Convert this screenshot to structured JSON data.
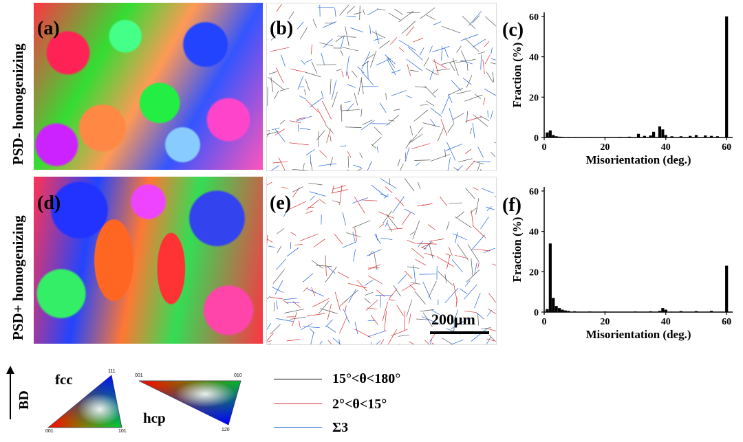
{
  "row_labels": [
    "PSD- homogenizing",
    "PSD+ homogenizing"
  ],
  "panel_labels": [
    "(a)",
    "(b)",
    "(c)",
    "(d)",
    "(e)",
    "(f)"
  ],
  "scale_bar": "200μm",
  "colors": {
    "hagb": "#000000",
    "lagb": "#d62b2b",
    "sigma3": "#1f5fdc"
  },
  "legend": {
    "bd_label": "BD",
    "fcc_label": "fcc",
    "hcp_label": "hcp",
    "fcc_corners": [
      "111",
      "001",
      "101"
    ],
    "hcp_corners": [
      "001",
      "010",
      "120"
    ],
    "entries": [
      "15°<θ<180°",
      "2°<θ<15°",
      "Σ3"
    ]
  },
  "chart_data": [
    {
      "type": "bar",
      "panel": "(c)",
      "title": "",
      "xlabel": "Misorientation (deg.)",
      "ylabel": "Fraction (%)",
      "xlim": [
        0,
        62
      ],
      "ylim": [
        0,
        62
      ],
      "xticks": [
        0,
        20,
        40,
        60
      ],
      "yticks": [
        0,
        20,
        40,
        60
      ],
      "x": [
        1,
        2,
        3,
        4,
        5,
        6,
        8,
        10,
        15,
        20,
        25,
        28,
        31,
        33,
        35,
        36,
        38,
        39,
        40,
        42,
        45,
        48,
        50,
        53,
        55,
        57,
        60
      ],
      "values": [
        2.5,
        3.5,
        1.2,
        0.6,
        0.4,
        0.3,
        0.2,
        0.2,
        0.2,
        0.2,
        0.3,
        0.4,
        1.8,
        0.8,
        1.0,
        2.8,
        5.5,
        4.0,
        1.2,
        0.6,
        0.6,
        0.8,
        1.2,
        1.0,
        0.8,
        0.6,
        60
      ]
    },
    {
      "type": "bar",
      "panel": "(f)",
      "title": "",
      "xlabel": "Misorientation (deg.)",
      "ylabel": "Fraction (%)",
      "xlim": [
        0,
        62
      ],
      "ylim": [
        0,
        62
      ],
      "xticks": [
        0,
        20,
        40,
        60
      ],
      "yticks": [
        0,
        20,
        40,
        60
      ],
      "x": [
        1,
        2,
        3,
        4,
        5,
        6,
        7,
        8,
        10,
        15,
        20,
        30,
        35,
        38,
        39,
        40,
        45,
        50,
        55,
        60
      ],
      "values": [
        1.5,
        34,
        7,
        3,
        2,
        1.2,
        0.8,
        0.6,
        0.4,
        0.3,
        0.3,
        0.3,
        0.4,
        0.6,
        2.0,
        1.2,
        0.5,
        0.5,
        0.6,
        23
      ]
    }
  ]
}
